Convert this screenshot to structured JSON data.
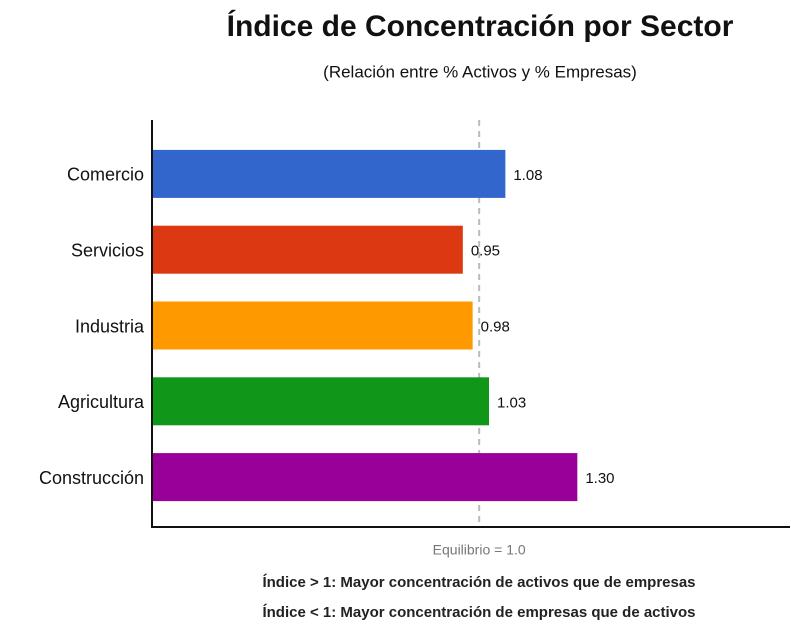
{
  "chart_data": {
    "type": "barh",
    "title": "Índice de Concentración por Sector",
    "subtitle": "(Relación entre % Activos y % Empresas)",
    "categories": [
      "Comercio",
      "Servicios",
      "Industria",
      "Agricultura",
      "Construcción"
    ],
    "values": [
      1.08,
      0.95,
      0.98,
      1.03,
      1.3
    ],
    "value_labels": [
      "1.08",
      "0.95",
      "0.98",
      "1.03",
      "1.30"
    ],
    "colors": [
      "#3366cc",
      "#dc3912",
      "#ff9900",
      "#109618",
      "#990099"
    ],
    "xlim": [
      0,
      1.95
    ],
    "reference_line": {
      "value": 1.0,
      "label": "Equilibrio = 1.0"
    },
    "notes": [
      "Índice > 1: Mayor concentración de activos que de empresas",
      "Índice < 1: Mayor concentración de empresas que de activos"
    ]
  }
}
